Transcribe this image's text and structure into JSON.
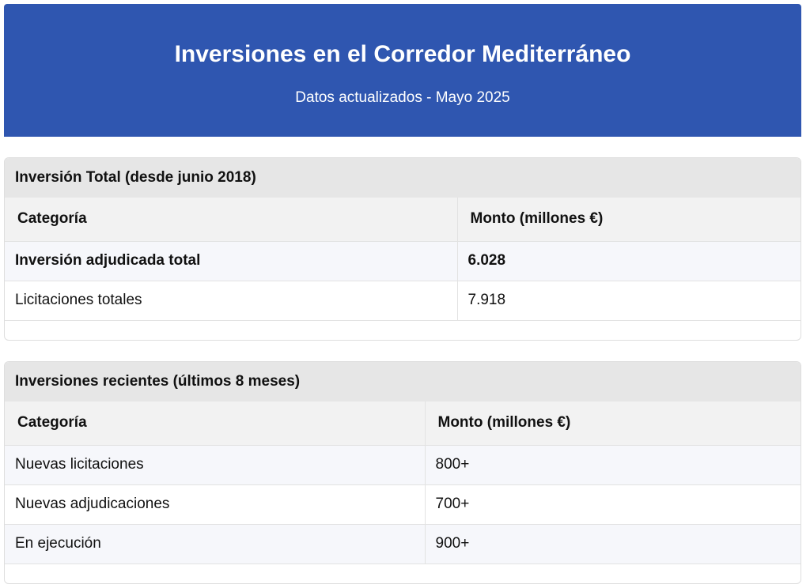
{
  "header": {
    "title": "Inversiones en el Corredor Mediterráneo",
    "subtitle": "Datos actualizados - Mayo 2025"
  },
  "total_section": {
    "title": "Inversión Total (desde junio 2018)",
    "columns": [
      "Categoría",
      "Monto (millones €)"
    ],
    "rows": [
      {
        "category": "Inversión adjudicada total",
        "amount": "6.028"
      },
      {
        "category": "Licitaciones totales",
        "amount": "7.918"
      }
    ]
  },
  "recent_section": {
    "title": "Inversiones recientes (últimos 8 meses)",
    "columns": [
      "Categoría",
      "Monto (millones €)"
    ],
    "rows": [
      {
        "category": "Nuevas licitaciones",
        "amount": "800+"
      },
      {
        "category": "Nuevas adjudicaciones",
        "amount": "700+"
      },
      {
        "category": "En ejecución",
        "amount": "900+"
      }
    ]
  },
  "colors": {
    "banner": "#2f56b0",
    "section_header": "#e6e6e6",
    "table_header": "#f2f2f2",
    "row_alt": "#f6f7fb"
  }
}
